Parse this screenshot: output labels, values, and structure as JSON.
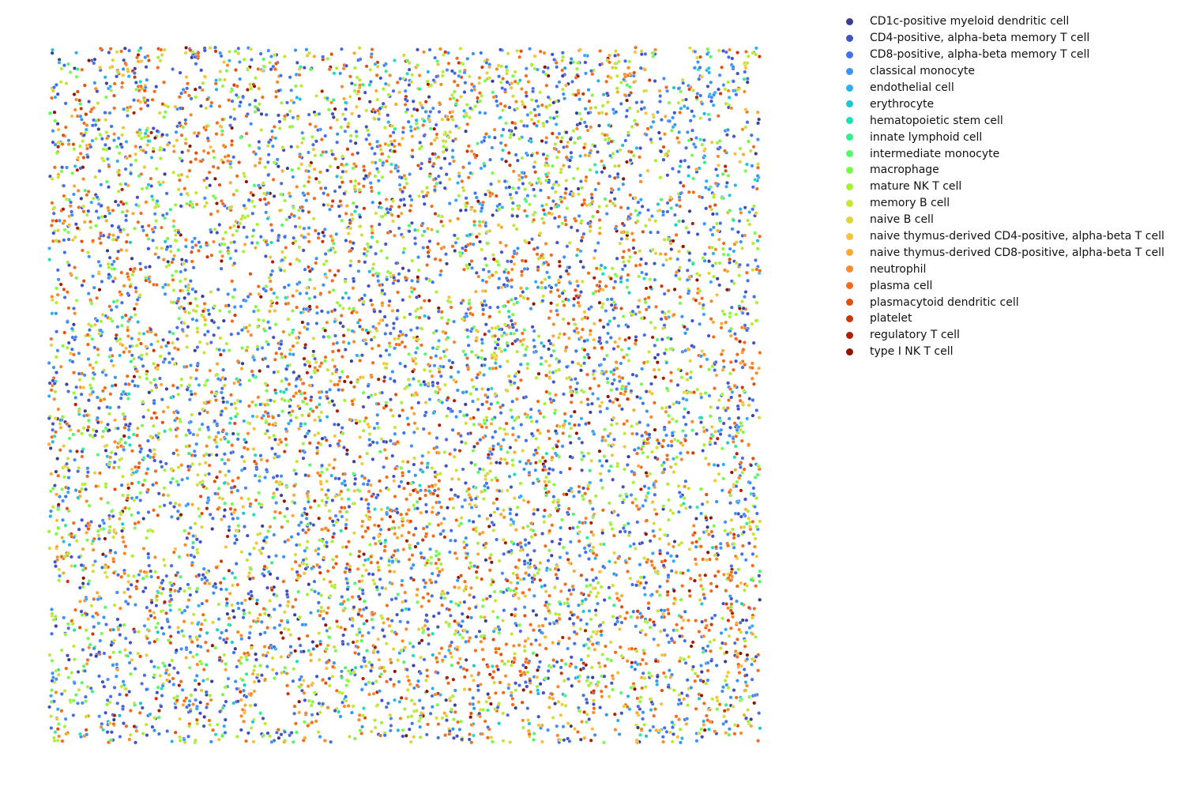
{
  "chart_data": {
    "type": "scatter",
    "title": "",
    "xlabel": "",
    "ylabel": "",
    "axes_visible": false,
    "grid": false,
    "legend_placement": "outside-right-top",
    "marker": "small dot with white edge",
    "categories": [
      {
        "name": "CD1c-positive myeloid dendritic cell",
        "color": "#3b3f94"
      },
      {
        "name": "CD4-positive, alpha-beta memory T cell",
        "color": "#4352c7"
      },
      {
        "name": "CD8-positive, alpha-beta memory T cell",
        "color": "#4570e6"
      },
      {
        "name": "classical monocyte",
        "color": "#3f92f5"
      },
      {
        "name": "endothelial cell",
        "color": "#2fb0ec"
      },
      {
        "name": "erythrocyte",
        "color": "#1fc7d3"
      },
      {
        "name": "hematopoietic stem cell",
        "color": "#1ce1b4"
      },
      {
        "name": "innate lymphoid cell",
        "color": "#2ff08f"
      },
      {
        "name": "intermediate monocyte",
        "color": "#52fa6a"
      },
      {
        "name": "macrophage",
        "color": "#7cfa4a"
      },
      {
        "name": "mature NK T cell",
        "color": "#a4f233"
      },
      {
        "name": "memory B cell",
        "color": "#c6e534"
      },
      {
        "name": "naive B cell",
        "color": "#e0d43c"
      },
      {
        "name": "naive thymus-derived CD4-positive, alpha-beta T cell",
        "color": "#f5c23a"
      },
      {
        "name": "naive thymus-derived CD8-positive, alpha-beta T cell",
        "color": "#fbaa30"
      },
      {
        "name": "neutrophil",
        "color": "#f88a27"
      },
      {
        "name": "plasma cell",
        "color": "#f26c1c"
      },
      {
        "name": "plasmacytoid dendritic cell",
        "color": "#e24e10"
      },
      {
        "name": "platelet",
        "color": "#cd360a"
      },
      {
        "name": "regulatory T cell",
        "color": "#b01f04"
      },
      {
        "name": "type I NK T cell",
        "color": "#8e1303"
      }
    ],
    "regions": {
      "plasma_dense": [
        {
          "x": 0.14,
          "y": 0.04,
          "r": 0.08
        },
        {
          "x": 0.24,
          "y": 0.15,
          "r": 0.09
        },
        {
          "x": 0.05,
          "y": 0.32,
          "r": 0.08
        },
        {
          "x": 0.74,
          "y": 0.3,
          "r": 0.1
        },
        {
          "x": 0.4,
          "y": 0.48,
          "r": 0.06
        },
        {
          "x": 0.97,
          "y": 0.46,
          "r": 0.07
        },
        {
          "x": 0.5,
          "y": 0.73,
          "r": 0.13
        },
        {
          "x": 0.62,
          "y": 0.92,
          "r": 0.1
        },
        {
          "x": 0.92,
          "y": 0.8,
          "r": 0.11
        },
        {
          "x": 0.73,
          "y": 0.63,
          "r": 0.03
        },
        {
          "x": 0.05,
          "y": 0.06,
          "r": 0.04
        }
      ],
      "monocyte_dense": [
        {
          "x": 0.92,
          "y": 0.08,
          "r": 0.09
        },
        {
          "x": 0.96,
          "y": 0.2,
          "r": 0.07
        }
      ],
      "empty": [
        {
          "x": 0.15,
          "y": 0.38,
          "r": 0.025
        },
        {
          "x": 0.22,
          "y": 0.33,
          "r": 0.022
        },
        {
          "x": 0.29,
          "y": 0.31,
          "r": 0.015
        },
        {
          "x": 0.57,
          "y": 0.34,
          "r": 0.018
        },
        {
          "x": 0.63,
          "y": 0.36,
          "r": 0.014
        },
        {
          "x": 0.88,
          "y": 0.02,
          "r": 0.03
        },
        {
          "x": 0.93,
          "y": 0.12,
          "r": 0.015
        },
        {
          "x": 0.85,
          "y": 0.2,
          "r": 0.015
        },
        {
          "x": 0.87,
          "y": 0.26,
          "r": 0.012
        },
        {
          "x": 0.91,
          "y": 0.61,
          "r": 0.02
        },
        {
          "x": 0.17,
          "y": 0.7,
          "r": 0.022
        },
        {
          "x": 0.23,
          "y": 0.71,
          "r": 0.018
        },
        {
          "x": 0.12,
          "y": 0.82,
          "r": 0.018
        },
        {
          "x": 0.16,
          "y": 0.87,
          "r": 0.016
        },
        {
          "x": 0.02,
          "y": 0.79,
          "r": 0.022
        },
        {
          "x": 0.32,
          "y": 0.95,
          "r": 0.025
        },
        {
          "x": 0.4,
          "y": 0.98,
          "r": 0.02
        },
        {
          "x": 0.45,
          "y": 0.39,
          "r": 0.012
        },
        {
          "x": 0.3,
          "y": 0.57,
          "r": 0.012
        },
        {
          "x": 0.68,
          "y": 0.49,
          "r": 0.01
        }
      ]
    }
  }
}
